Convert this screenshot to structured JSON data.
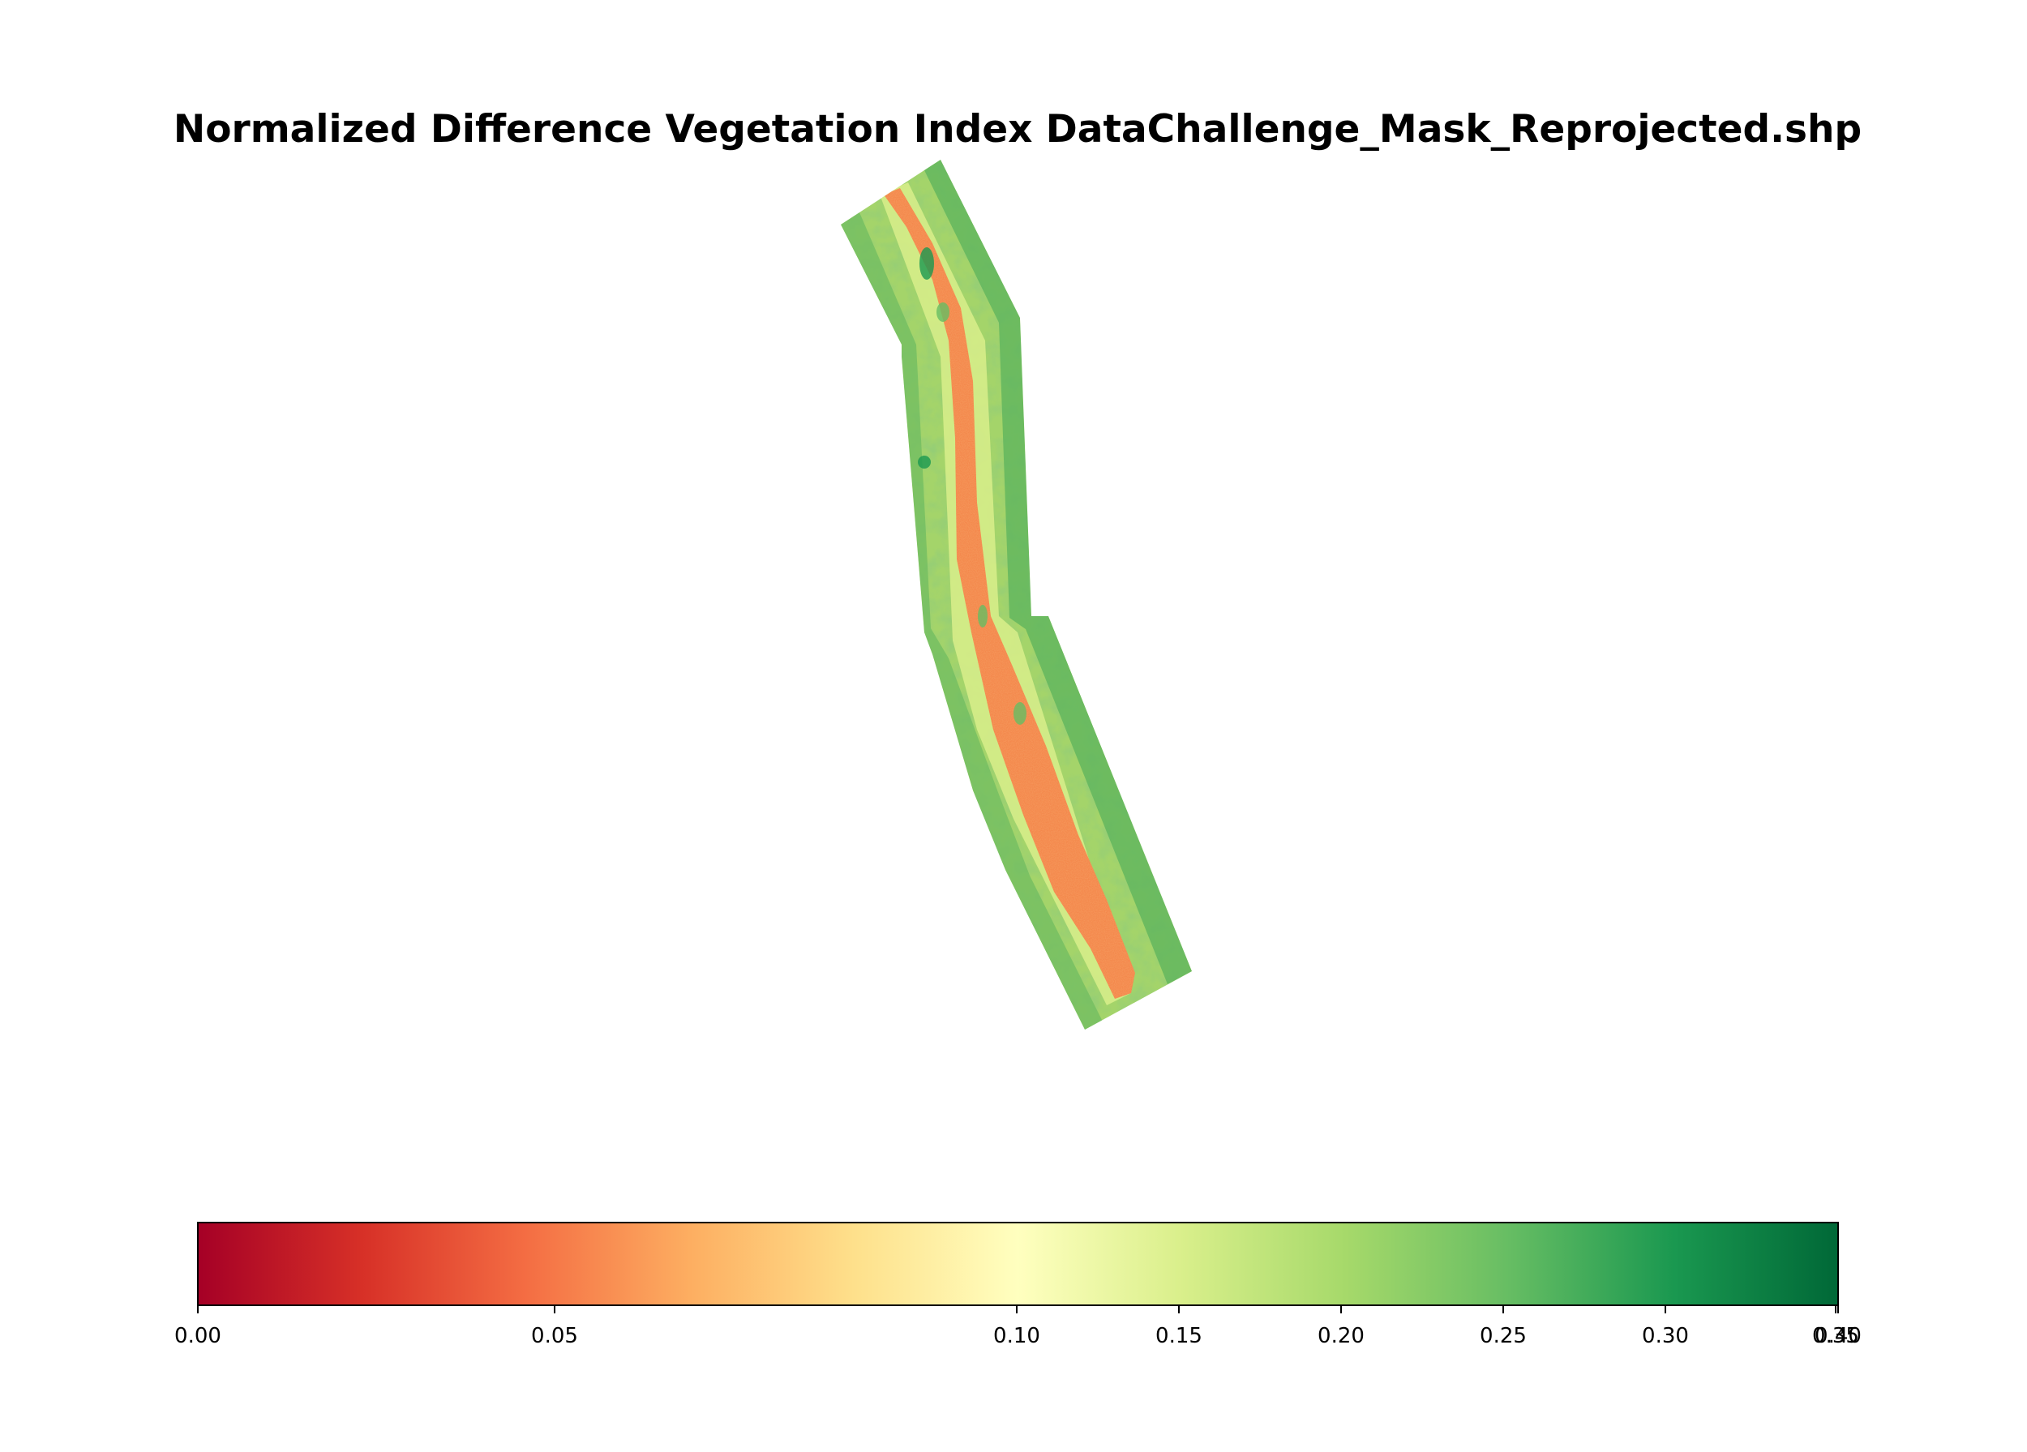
{
  "chart_data": {
    "type": "heatmap",
    "title": "Normalized Difference Vegetation Index DataChallenge_Mask_Reprojected.shp",
    "colormap": "RdYlGn",
    "colormap_stops": [
      "#a50026",
      "#d73027",
      "#f46d43",
      "#fdae61",
      "#fee08b",
      "#ffffbf",
      "#d9ef8b",
      "#a6d96a",
      "#66bd63",
      "#1a9850",
      "#006837"
    ],
    "colorbar": {
      "orientation": "horizontal",
      "range": [
        0.0,
        0.35
      ],
      "tick_values": [
        0.0,
        0.05,
        0.1,
        0.15,
        0.2,
        0.25,
        0.3,
        0.35,
        0.4
      ],
      "tick_labels": [
        "0.00",
        "0.05",
        "0.10",
        "0.15",
        "0.20",
        "0.25",
        "0.30",
        "0.35",
        "0.40"
      ],
      "tick_scale": "piecewise-uneven"
    },
    "raster": {
      "description_values": {
        "channel_center_ndvi": 0.09,
        "banks_ndvi": 0.24,
        "outer_edges_ndvi": 0.3
      }
    }
  }
}
